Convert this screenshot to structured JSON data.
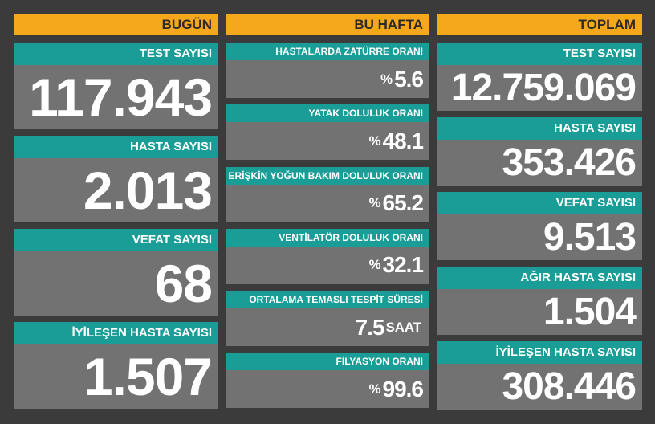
{
  "columns": [
    {
      "title": "BUGÜN",
      "cards": [
        {
          "label": "TEST SAYISI",
          "value": "117.943"
        },
        {
          "label": "HASTA SAYISI",
          "value": "2.013"
        },
        {
          "label": "VEFAT SAYISI",
          "value": "68"
        },
        {
          "label": "İYİLEŞEN HASTA SAYISI",
          "value": "1.507"
        }
      ]
    },
    {
      "title": "BU HAFTA",
      "cards": [
        {
          "label": "HASTALARDA ZATÜRRE ORANI",
          "prefix": "%",
          "value": "5.6"
        },
        {
          "label": "YATAK DOLULUK ORANI",
          "prefix": "%",
          "value": "48.1"
        },
        {
          "label": "ERİŞKİN YOĞUN BAKIM DOLULUK ORANI",
          "prefix": "%",
          "value": "65.2"
        },
        {
          "label": "VENTİLATÖR DOLULUK ORANI",
          "prefix": "%",
          "value": "32.1"
        },
        {
          "label": "ORTALAMA TEMASLI TESPİT SÜRESİ",
          "value": "7.5",
          "unit": "SAAT"
        },
        {
          "label": "FİLYASYON ORANI",
          "prefix": "%",
          "value": "99.6"
        }
      ]
    },
    {
      "title": "TOPLAM",
      "cards": [
        {
          "label": "TEST SAYISI",
          "value": "12.759.069"
        },
        {
          "label": "HASTA SAYISI",
          "value": "353.426"
        },
        {
          "label": "VEFAT SAYISI",
          "value": "9.513"
        },
        {
          "label": "AĞIR HASTA SAYISI",
          "value": "1.504"
        },
        {
          "label": "İYİLEŞEN HASTA SAYISI",
          "value": "308.446"
        }
      ]
    }
  ]
}
